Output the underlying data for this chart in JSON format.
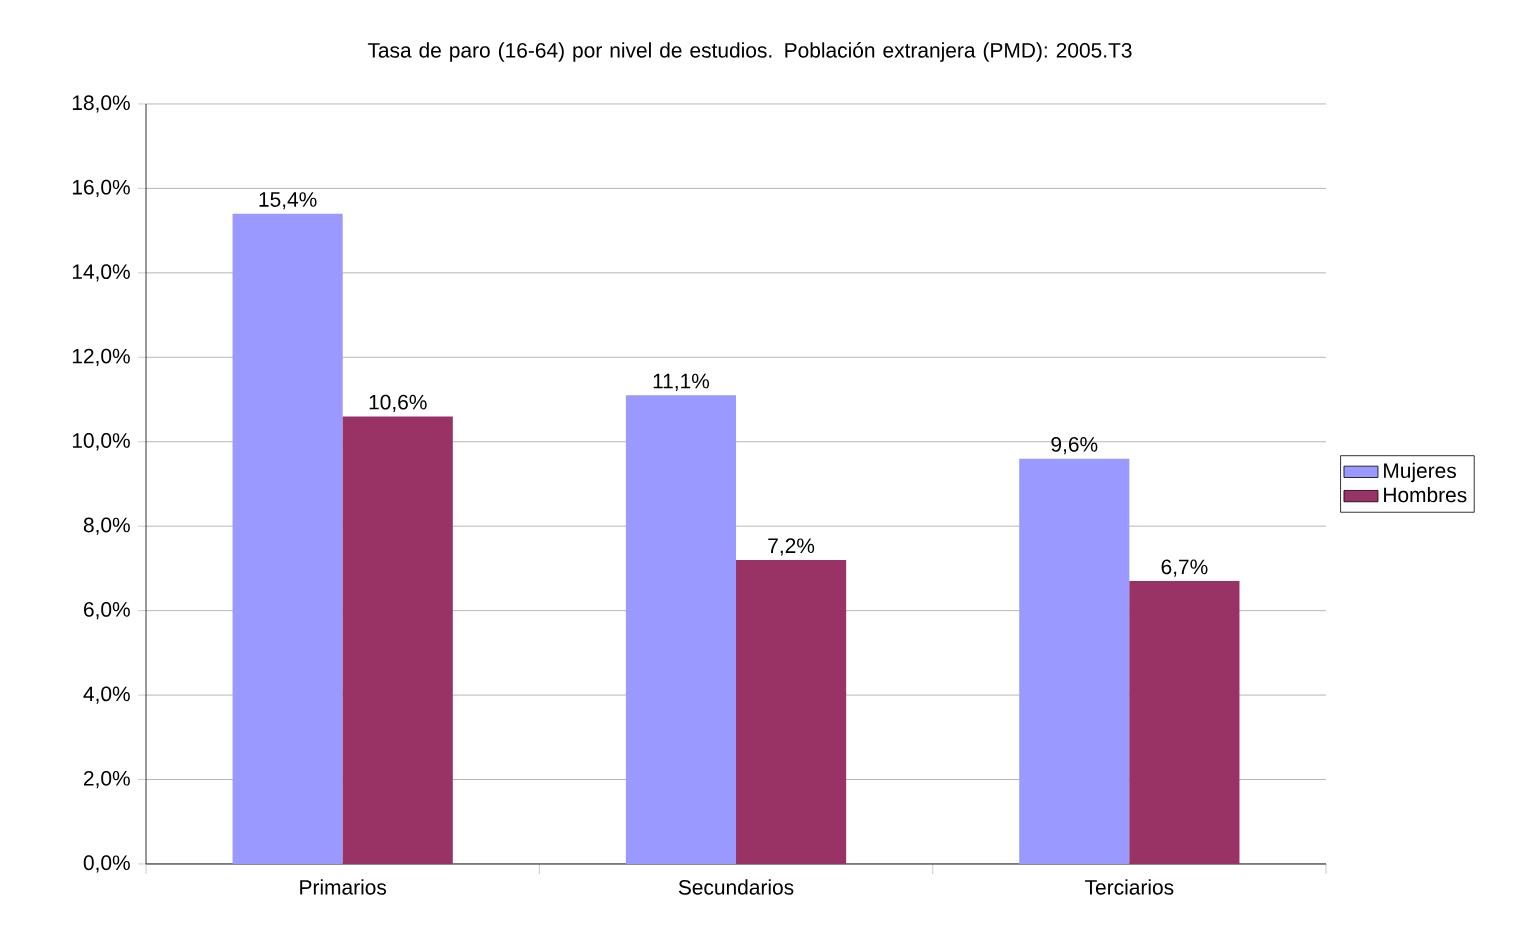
{
  "chart_data": {
    "type": "bar",
    "title": "Tasa de paro (16-64) por nivel de estudios. Población extranjera (PMD): 2005.T3",
    "categories": [
      "Primarios",
      "Secundarios",
      "Terciarios"
    ],
    "series": [
      {
        "name": "Mujeres",
        "color": "#9999ff",
        "values": [
          15.4,
          11.1,
          9.6
        ],
        "value_labels": [
          "15,4%",
          "11,1%",
          "9,6%"
        ]
      },
      {
        "name": "Hombres",
        "color": "#993366",
        "values": [
          10.6,
          7.2,
          6.7
        ],
        "value_labels": [
          "10,6%",
          "7,2%",
          "6,7%"
        ]
      }
    ],
    "ylim": [
      0,
      18
    ],
    "yticks": [
      {
        "value": 0,
        "label": "0,0%"
      },
      {
        "value": 2,
        "label": "2,0%"
      },
      {
        "value": 4,
        "label": "4,0%"
      },
      {
        "value": 6,
        "label": "6,0%"
      },
      {
        "value": 8,
        "label": "8,0%"
      },
      {
        "value": 10,
        "label": "10,0%"
      },
      {
        "value": 12,
        "label": "12,0%"
      },
      {
        "value": 14,
        "label": "14,0%"
      },
      {
        "value": 16,
        "label": "16,0%"
      },
      {
        "value": 18,
        "label": "18,0%"
      }
    ],
    "grid": "y",
    "legend": "right"
  }
}
